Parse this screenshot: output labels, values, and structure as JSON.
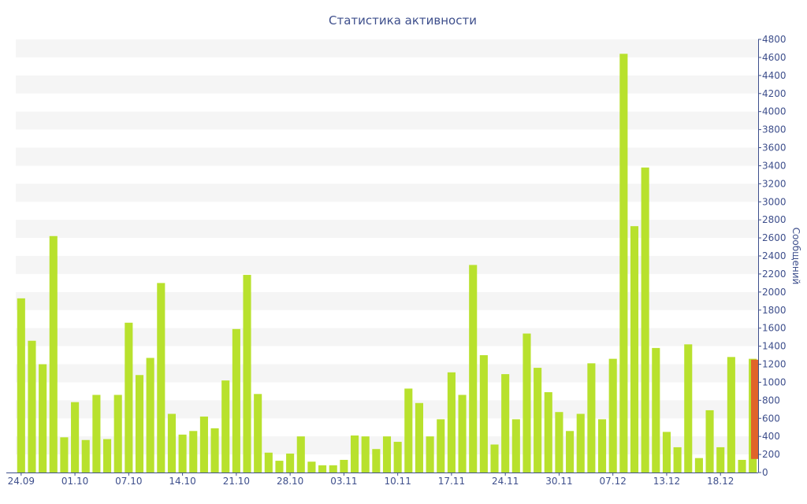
{
  "chart_data": {
    "type": "bar",
    "title": "Статистика активности",
    "xlabel": "",
    "ylabel": "Сообщений",
    "ylim": [
      0,
      4800
    ],
    "y_ticks": [
      0,
      200,
      400,
      600,
      800,
      1000,
      1200,
      1400,
      1600,
      1800,
      2000,
      2200,
      2400,
      2600,
      2800,
      3000,
      3200,
      3400,
      3600,
      3800,
      4000,
      4200,
      4400,
      4600,
      4800
    ],
    "y_axis_position": "right",
    "grid": "horizontal-bands",
    "x_tick_labels": [
      {
        "label": "24.09",
        "index": 0
      },
      {
        "label": "01.10",
        "index": 5
      },
      {
        "label": "07.10",
        "index": 10
      },
      {
        "label": "14.10",
        "index": 15
      },
      {
        "label": "21.10",
        "index": 20
      },
      {
        "label": "28.10",
        "index": 25
      },
      {
        "label": "03.11",
        "index": 30
      },
      {
        "label": "10.11",
        "index": 35
      },
      {
        "label": "17.11",
        "index": 40
      },
      {
        "label": "24.11",
        "index": 45
      },
      {
        "label": "30.11",
        "index": 50
      },
      {
        "label": "07.12",
        "index": 55
      },
      {
        "label": "13.12",
        "index": 60
      },
      {
        "label": "18.12",
        "index": 65
      }
    ],
    "values": [
      1930,
      1460,
      1200,
      2620,
      390,
      780,
      360,
      860,
      370,
      860,
      1660,
      1080,
      1270,
      2100,
      650,
      420,
      460,
      620,
      490,
      1020,
      1590,
      2190,
      870,
      220,
      130,
      210,
      400,
      120,
      80,
      80,
      140,
      410,
      400,
      260,
      400,
      340,
      930,
      770,
      400,
      590,
      1110,
      860,
      2300,
      1300,
      310,
      1090,
      590,
      1540,
      1160,
      890,
      670,
      460,
      650,
      1210,
      590,
      1260,
      4640,
      2730,
      3380,
      1380,
      450,
      280,
      1420,
      160,
      690,
      280,
      1280,
      140,
      1260
    ],
    "bar_color": "#b8e12d",
    "highlight": {
      "from": 150,
      "to": 1250,
      "color": "#e0642a"
    }
  }
}
